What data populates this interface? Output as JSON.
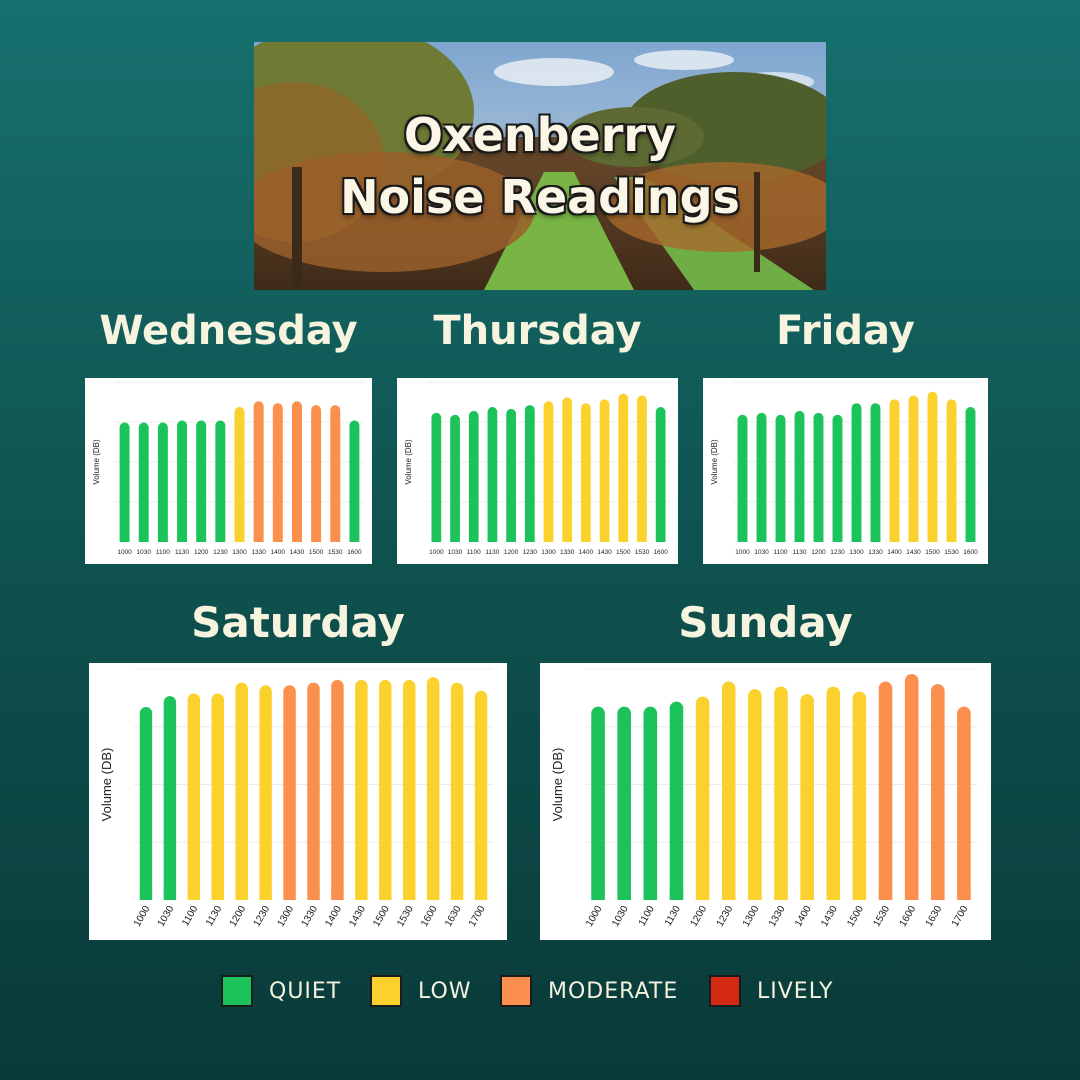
{
  "banner": {
    "title_line1": "Oxenberry",
    "title_line2": "Noise Readings"
  },
  "colors": {
    "quiet": "#1cc25a",
    "low": "#fbd12e",
    "moderate": "#fb8f4d",
    "lively": "#d42a15"
  },
  "legend": [
    {
      "label": "QUIET",
      "color": "#1cc25a"
    },
    {
      "label": "LOW",
      "color": "#fbd12e"
    },
    {
      "label": "MODERATE",
      "color": "#fb8f4d"
    },
    {
      "label": "LIVELY",
      "color": "#d42a15"
    }
  ],
  "chart_data": [
    {
      "type": "bar",
      "title": "Wednesday",
      "ylabel": "Volume (DB)",
      "categories": [
        "1000",
        "1030",
        "1100",
        "1130",
        "1200",
        "1230",
        "1300",
        "1330",
        "1400",
        "1430",
        "1500",
        "1530",
        "1600"
      ],
      "values": [
        62,
        62,
        62,
        63,
        63,
        63,
        70,
        73,
        72,
        73,
        71,
        71,
        63
      ],
      "levels": [
        "quiet",
        "quiet",
        "quiet",
        "quiet",
        "quiet",
        "quiet",
        "low",
        "moderate",
        "moderate",
        "moderate",
        "moderate",
        "moderate",
        "quiet"
      ],
      "ylim": [
        0,
        83
      ]
    },
    {
      "type": "bar",
      "title": "Thursday",
      "ylabel": "Volume (DB)",
      "categories": [
        "1000",
        "1030",
        "1100",
        "1130",
        "1200",
        "1230",
        "1300",
        "1330",
        "1400",
        "1430",
        "1500",
        "1530",
        "1600"
      ],
      "values": [
        67,
        66,
        68,
        70,
        69,
        71,
        73,
        75,
        72,
        74,
        77,
        76,
        70
      ],
      "levels": [
        "quiet",
        "quiet",
        "quiet",
        "quiet",
        "quiet",
        "quiet",
        "low",
        "low",
        "low",
        "low",
        "low",
        "low",
        "quiet"
      ],
      "ylim": [
        0,
        83
      ]
    },
    {
      "type": "bar",
      "title": "Friday",
      "ylabel": "Volume (DB)",
      "categories": [
        "1000",
        "1030",
        "1100",
        "1130",
        "1200",
        "1230",
        "1300",
        "1330",
        "1400",
        "1430",
        "1500",
        "1530",
        "1600"
      ],
      "values": [
        66,
        67,
        66,
        68,
        67,
        66,
        72,
        72,
        74,
        76,
        78,
        74,
        70
      ],
      "levels": [
        "quiet",
        "quiet",
        "quiet",
        "quiet",
        "quiet",
        "quiet",
        "quiet",
        "quiet",
        "low",
        "low",
        "low",
        "low",
        "quiet"
      ],
      "ylim": [
        0,
        83
      ]
    },
    {
      "type": "bar",
      "title": "Saturday",
      "ylabel": "Volume (DB)",
      "categories": [
        "1000",
        "1030",
        "1100",
        "1130",
        "1200",
        "1230",
        "1300",
        "1330",
        "1400",
        "1430",
        "1500",
        "1530",
        "1600",
        "1630",
        "1700"
      ],
      "values": [
        71,
        75,
        76,
        76,
        80,
        79,
        79,
        80,
        81,
        81,
        81,
        81,
        82,
        80,
        77
      ],
      "levels": [
        "quiet",
        "quiet",
        "low",
        "low",
        "low",
        "low",
        "moderate",
        "moderate",
        "moderate",
        "low",
        "low",
        "low",
        "low",
        "low",
        "low"
      ],
      "ylim": [
        0,
        85
      ]
    },
    {
      "type": "bar",
      "title": "Sunday",
      "ylabel": "Volume (DB)",
      "categories": [
        "1000",
        "1030",
        "1100",
        "1130",
        "1200",
        "1230",
        "1300",
        "1330",
        "1400",
        "1430",
        "1500",
        "1530",
        "1600",
        "1630",
        "1700"
      ],
      "values": [
        77,
        77,
        77,
        79,
        81,
        87,
        84,
        85,
        82,
        85,
        83,
        87,
        90,
        86,
        77
      ],
      "levels": [
        "quiet",
        "quiet",
        "quiet",
        "quiet",
        "low",
        "low",
        "low",
        "low",
        "low",
        "low",
        "low",
        "moderate",
        "moderate",
        "moderate",
        "moderate"
      ],
      "ylim": [
        0,
        92
      ]
    }
  ]
}
